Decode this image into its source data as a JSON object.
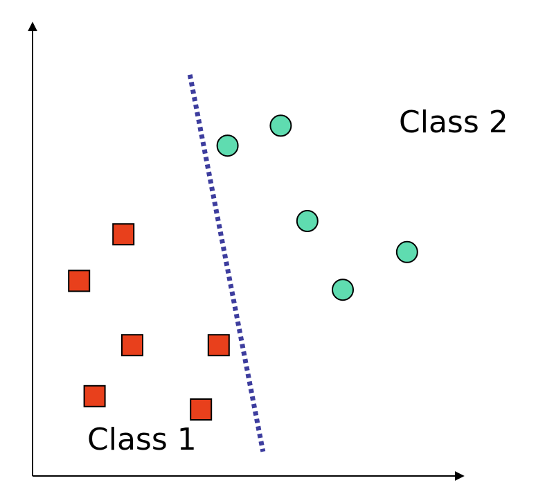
{
  "chart_data": {
    "type": "scatter",
    "title": "",
    "xlabel": "",
    "ylabel": "",
    "grid": false,
    "xlim": [
      0,
      10
    ],
    "ylim": [
      0,
      10
    ],
    "series": [
      {
        "name": "Class 1",
        "marker": "square",
        "color": "#e8401c",
        "points": [
          {
            "x": 2.05,
            "y": 5.45
          },
          {
            "x": 1.05,
            "y": 4.4
          },
          {
            "x": 2.25,
            "y": 2.95
          },
          {
            "x": 4.2,
            "y": 2.95
          },
          {
            "x": 1.4,
            "y": 1.8
          },
          {
            "x": 3.8,
            "y": 1.5
          }
        ]
      },
      {
        "name": "Class 2",
        "marker": "circle",
        "color": "#5fdcb0",
        "points": [
          {
            "x": 4.4,
            "y": 7.45
          },
          {
            "x": 5.6,
            "y": 7.9
          },
          {
            "x": 6.2,
            "y": 5.75
          },
          {
            "x": 7.0,
            "y": 4.2
          },
          {
            "x": 8.45,
            "y": 5.05
          }
        ]
      }
    ],
    "decision_boundary": {
      "style": "dotted",
      "color": "#3d3d9e",
      "from": {
        "x": 3.55,
        "y": 9.05
      },
      "to": {
        "x": 5.2,
        "y": 0.55
      }
    }
  }
}
